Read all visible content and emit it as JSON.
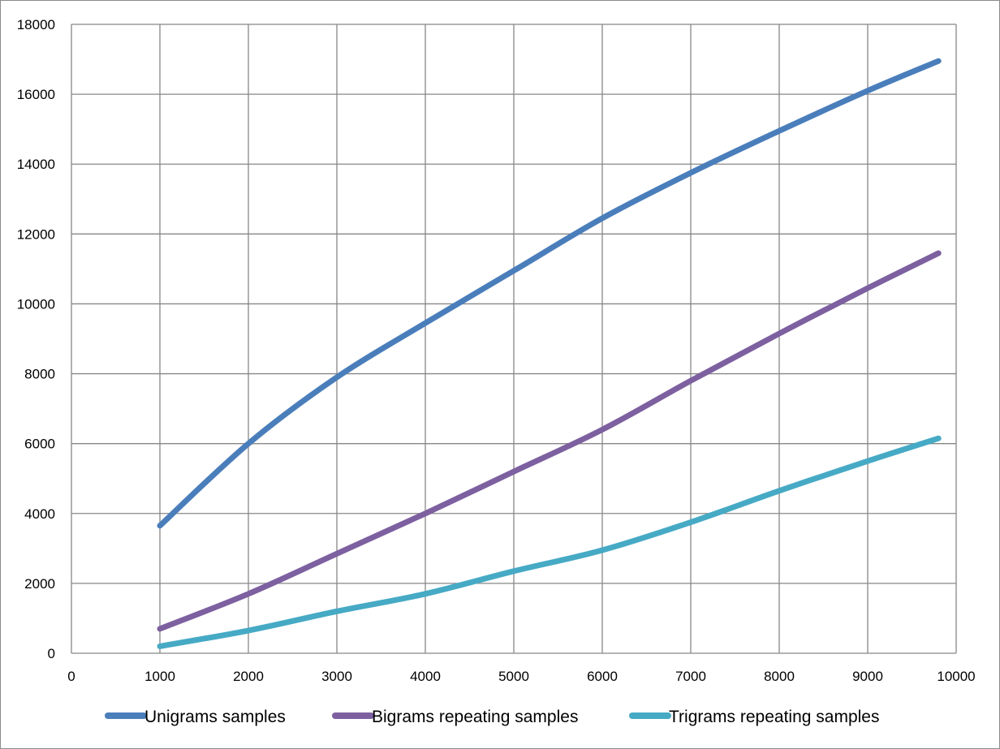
{
  "chart_data": {
    "type": "line",
    "title": "",
    "xlabel": "",
    "ylabel": "",
    "xlim": [
      0,
      10000
    ],
    "ylim": [
      0,
      18000
    ],
    "x_ticks": [
      0,
      1000,
      2000,
      3000,
      4000,
      5000,
      6000,
      7000,
      8000,
      9000,
      10000
    ],
    "y_ticks": [
      0,
      2000,
      4000,
      6000,
      8000,
      10000,
      12000,
      14000,
      16000,
      18000
    ],
    "grid": true,
    "legend_position": "bottom",
    "x": [
      1000,
      2000,
      3000,
      4000,
      5000,
      6000,
      7000,
      8000,
      9000,
      9800
    ],
    "series": [
      {
        "name": "Unigrams samples",
        "color": "#4a7ebb",
        "values": [
          3650,
          6000,
          7900,
          9450,
          10950,
          12450,
          13750,
          14950,
          16100,
          16950
        ]
      },
      {
        "name": "Bigrams repeating samples",
        "color": "#7d60a0",
        "values": [
          700,
          1700,
          2850,
          4000,
          5200,
          6400,
          7800,
          9150,
          10450,
          11450
        ]
      },
      {
        "name": "Trigrams repeating samples",
        "color": "#46aac5",
        "values": [
          200,
          650,
          1200,
          1700,
          2350,
          2950,
          3750,
          4650,
          5500,
          6150
        ]
      }
    ]
  }
}
